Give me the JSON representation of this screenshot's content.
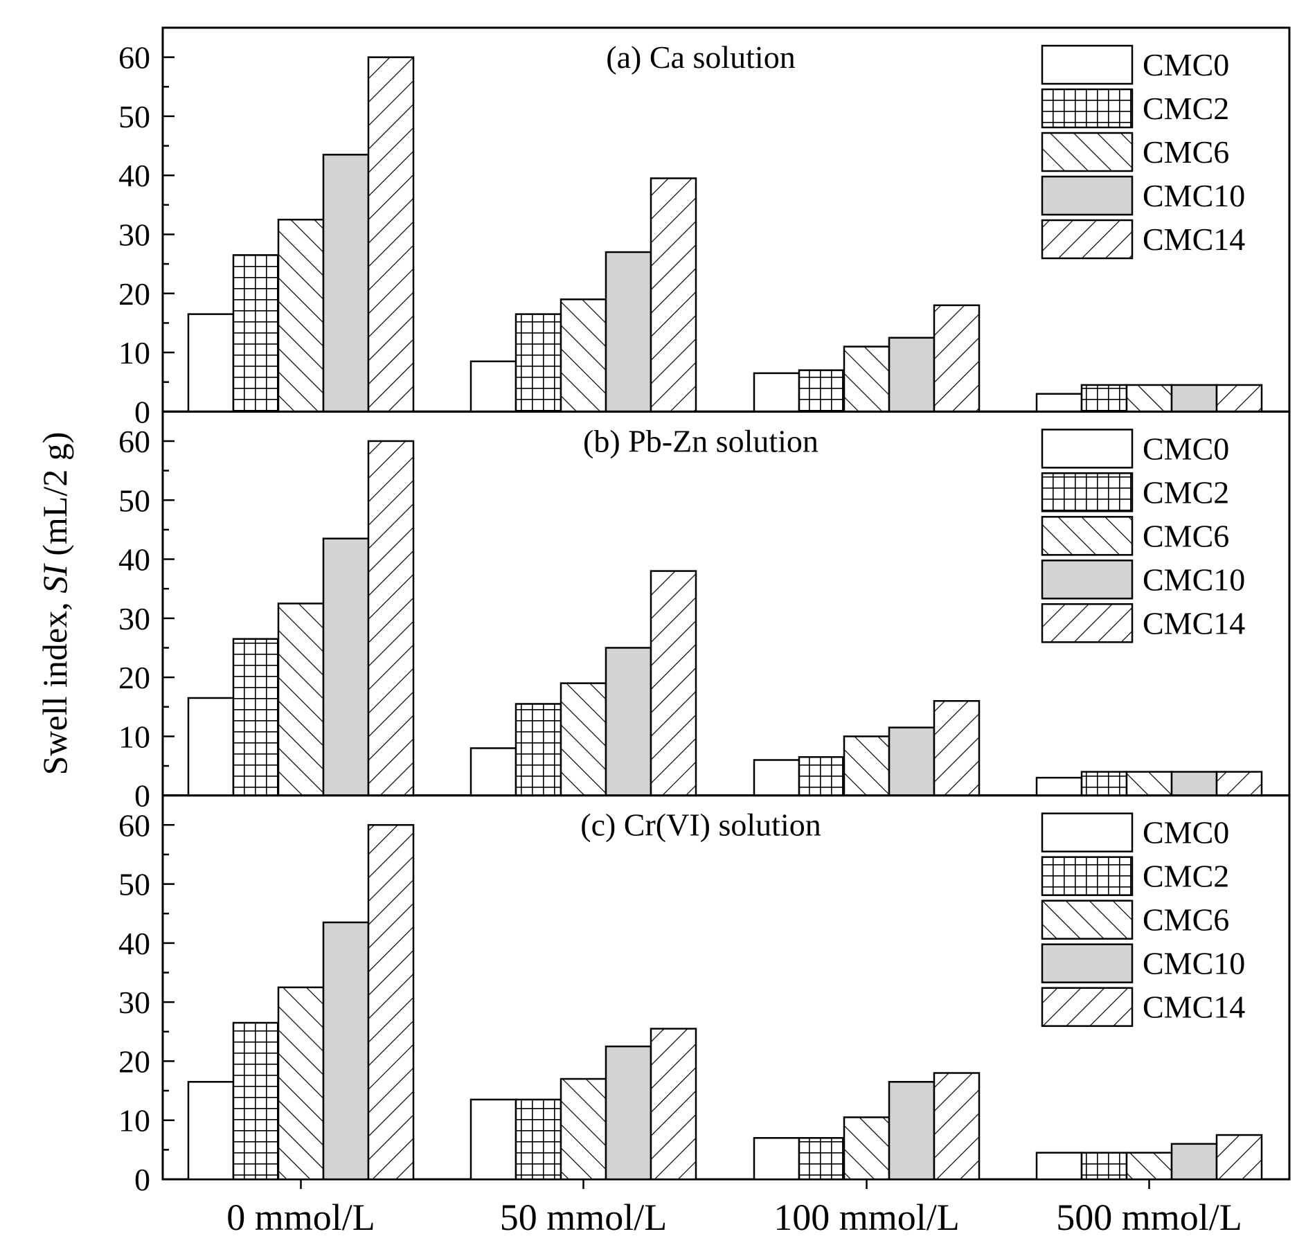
{
  "chart_data": {
    "type": "bar",
    "ylabel_prefix": "Swell index, ",
    "ylabel_italic": "SI",
    "ylabel_suffix": " (mL/2 g)",
    "categories": [
      "0 mmol/L",
      "50 mmol/L",
      "100 mmol/L",
      "500 mmol/L"
    ],
    "ylim": [
      0,
      65
    ],
    "yticks": [
      0,
      10,
      20,
      30,
      40,
      50,
      60
    ],
    "panels": [
      {
        "title": "(a) Ca solution",
        "series": [
          {
            "name": "CMC0",
            "values": [
              16.5,
              8.5,
              6.5,
              3.0
            ]
          },
          {
            "name": "CMC2",
            "values": [
              26.5,
              16.5,
              7.0,
              4.5
            ]
          },
          {
            "name": "CMC6",
            "values": [
              32.5,
              19.0,
              11.0,
              4.5
            ]
          },
          {
            "name": "CMC10",
            "values": [
              43.5,
              27.0,
              12.5,
              4.5
            ]
          },
          {
            "name": "CMC14",
            "values": [
              60.0,
              39.5,
              18.0,
              4.5
            ]
          }
        ]
      },
      {
        "title": "(b) Pb-Zn solution",
        "series": [
          {
            "name": "CMC0",
            "values": [
              16.5,
              8.0,
              6.0,
              3.0
            ]
          },
          {
            "name": "CMC2",
            "values": [
              26.5,
              15.5,
              6.5,
              4.0
            ]
          },
          {
            "name": "CMC6",
            "values": [
              32.5,
              19.0,
              10.0,
              4.0
            ]
          },
          {
            "name": "CMC10",
            "values": [
              43.5,
              25.0,
              11.5,
              4.0
            ]
          },
          {
            "name": "CMC14",
            "values": [
              60.0,
              38.0,
              16.0,
              4.0
            ]
          }
        ]
      },
      {
        "title": "(c) Cr(VI) solution",
        "series": [
          {
            "name": "CMC0",
            "values": [
              16.5,
              13.5,
              7.0,
              4.5
            ]
          },
          {
            "name": "CMC2",
            "values": [
              26.5,
              13.5,
              7.0,
              4.5
            ]
          },
          {
            "name": "CMC6",
            "values": [
              32.5,
              17.0,
              10.5,
              4.5
            ]
          },
          {
            "name": "CMC10",
            "values": [
              43.5,
              22.5,
              16.5,
              6.0
            ]
          },
          {
            "name": "CMC14",
            "values": [
              60.0,
              25.5,
              18.0,
              7.5
            ]
          }
        ]
      }
    ],
    "legend_placement": "top-right",
    "colors": {
      "CMC0": "#ffffff",
      "CMC2": "#ffffff",
      "CMC6": "#ffffff",
      "CMC10": "#d3d3d3",
      "CMC14": "#ffffff",
      "stroke": "#000000"
    },
    "patterns": {
      "CMC0": "none",
      "CMC2": "grid",
      "CMC6": "forward-diagonal",
      "CMC10": "solid-gray",
      "CMC14": "backward-diagonal"
    }
  }
}
